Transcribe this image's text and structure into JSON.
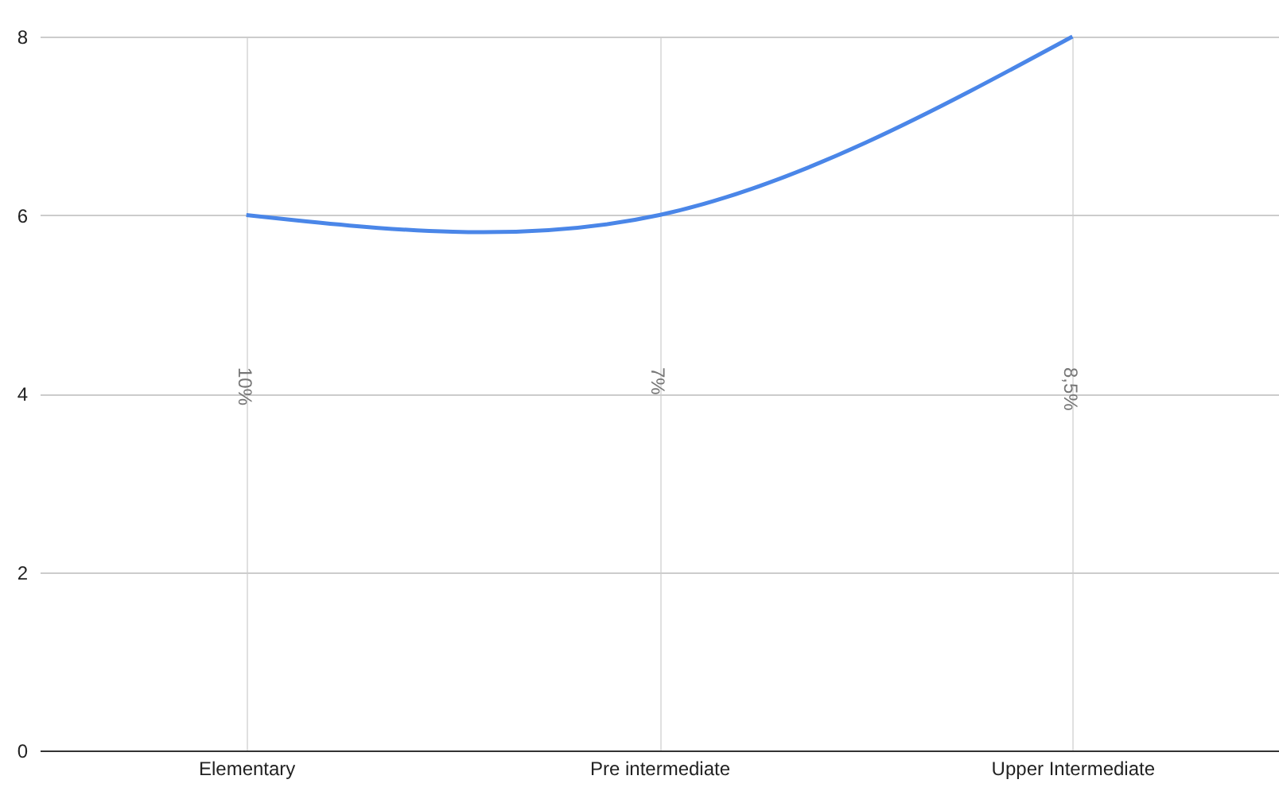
{
  "chart_data": {
    "type": "line",
    "categories": [
      "Elementary",
      "Pre intermediate",
      "Upper Intermediate"
    ],
    "series": [
      {
        "color": "#4a86e8",
        "values": [
          6,
          6,
          8
        ]
      }
    ],
    "ylim": [
      0,
      8
    ],
    "yticks": [
      0,
      2,
      4,
      6,
      8
    ],
    "grid": true,
    "marker": "none",
    "line_style": "solid",
    "annotations": [
      "10%",
      "7%",
      "8,5%"
    ]
  }
}
